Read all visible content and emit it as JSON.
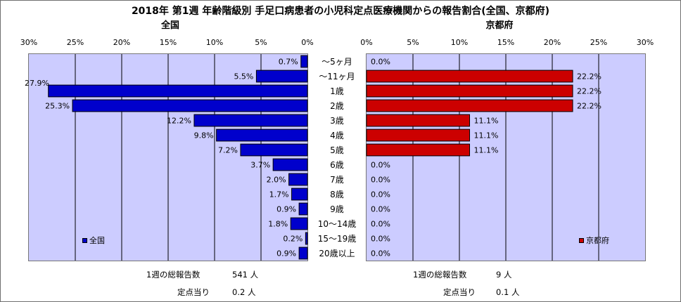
{
  "title": "2018年 第1週 年齢階級別 手足口病患者の小児科定点医療機関からの報告割合(全国、京都府)",
  "colors": {
    "national": "#0000cc",
    "kyoto": "#cc0000",
    "plot_bg": "#ccccff",
    "grid": "#000000"
  },
  "chart_data": [
    {
      "type": "bar",
      "orientation": "horizontal",
      "direction": "right-to-left",
      "title": "全国",
      "xlim": [
        0,
        30
      ],
      "ticks": [
        0,
        5,
        10,
        15,
        20,
        25,
        30
      ],
      "tick_labels": [
        "0%",
        "5%",
        "10%",
        "15%",
        "20%",
        "25%",
        "30%"
      ],
      "categories": [
        "～5ヶ月",
        "～11ヶ月",
        "1歳",
        "2歳",
        "3歳",
        "4歳",
        "5歳",
        "6歳",
        "7歳",
        "8歳",
        "9歳",
        "10～14歳",
        "15～19歳",
        "20歳以上"
      ],
      "values": [
        0.7,
        5.5,
        27.9,
        25.3,
        12.2,
        9.8,
        7.2,
        3.7,
        2.0,
        1.7,
        0.9,
        1.8,
        0.2,
        0.9
      ],
      "data_labels": [
        "0.7%",
        "5.5%",
        "27.9%",
        "25.3%",
        "12.2%",
        "9.8%",
        "7.2%",
        "3.7%",
        "2.0%",
        "1.7%",
        "0.9%",
        "1.8%",
        "0.2%",
        "0.9%"
      ],
      "legend": "全国",
      "grid": true
    },
    {
      "type": "bar",
      "orientation": "horizontal",
      "direction": "left-to-right",
      "title": "京都府",
      "xlim": [
        0,
        30
      ],
      "ticks": [
        0,
        5,
        10,
        15,
        20,
        25,
        30
      ],
      "tick_labels": [
        "0%",
        "5%",
        "10%",
        "15%",
        "20%",
        "25%",
        "30%"
      ],
      "categories": [
        "～5ヶ月",
        "～11ヶ月",
        "1歳",
        "2歳",
        "3歳",
        "4歳",
        "5歳",
        "6歳",
        "7歳",
        "8歳",
        "9歳",
        "10～14歳",
        "15～19歳",
        "20歳以上"
      ],
      "values": [
        0.0,
        22.2,
        22.2,
        22.2,
        11.1,
        11.1,
        11.1,
        0.0,
        0.0,
        0.0,
        0.0,
        0.0,
        0.0,
        0.0
      ],
      "data_labels": [
        "0.0%",
        "22.2%",
        "22.2%",
        "22.2%",
        "11.1%",
        "11.1%",
        "11.1%",
        "0.0%",
        "0.0%",
        "0.0%",
        "0.0%",
        "0.0%",
        "0.0%",
        "0.0%"
      ],
      "legend": "京都府",
      "grid": true
    }
  ],
  "summary": {
    "national": {
      "total_label": "1週の総報告数",
      "total_value": "541 人",
      "per_label": "定点当り",
      "per_value": "0.2 人"
    },
    "kyoto": {
      "total_label": "1週の総報告数",
      "total_value": "9 人",
      "per_label": "定点当り",
      "per_value": "0.1 人"
    }
  }
}
